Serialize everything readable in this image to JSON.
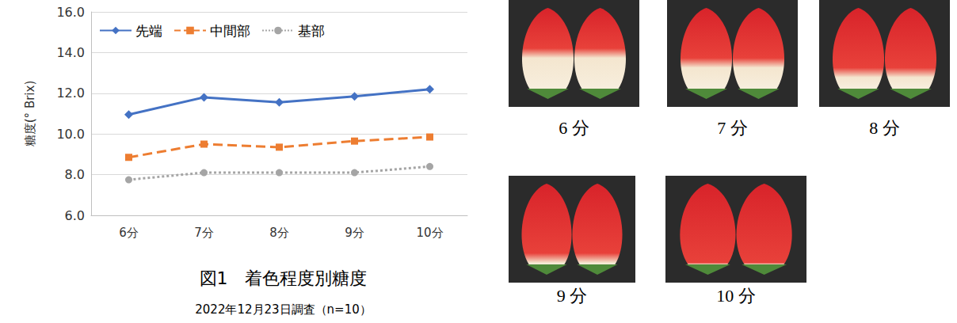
{
  "chart_data": {
    "type": "line",
    "title": "図1　着色程度別糖度",
    "subtitle": "2022年12月23日調査（n=10）",
    "y_label": "糖度(° Brix)",
    "categories": [
      "6分",
      "7分",
      "8分",
      "9分",
      "10分"
    ],
    "series": [
      {
        "name": "先端",
        "color": "#4472c4",
        "marker": "diamond",
        "line_style": "solid",
        "values": [
          10.95,
          11.8,
          11.55,
          11.85,
          12.2
        ]
      },
      {
        "name": "中間部",
        "color": "#ed7d31",
        "marker": "rect",
        "line_style": "dashed",
        "values": [
          8.85,
          9.5,
          9.35,
          9.65,
          9.85
        ]
      },
      {
        "name": "基部",
        "color": "#a5a5a5",
        "marker": "circle",
        "line_style": "dotted",
        "values": [
          7.75,
          8.1,
          8.1,
          8.1,
          8.4
        ]
      }
    ],
    "ylim": [
      6,
      16
    ],
    "yticks": [
      {
        "value": 6,
        "label": "6.0"
      },
      {
        "value": 8,
        "label": "8.0"
      },
      {
        "value": 10,
        "label": "10.0"
      },
      {
        "value": 12,
        "label": "12.0"
      },
      {
        "value": 14,
        "label": "14.0"
      },
      {
        "value": 16,
        "label": "16.0"
      }
    ],
    "grid": true,
    "legend": "upper left"
  },
  "photo_captions": [
    "6 分",
    "7 分",
    "8 分",
    "9 分",
    "10 分"
  ]
}
